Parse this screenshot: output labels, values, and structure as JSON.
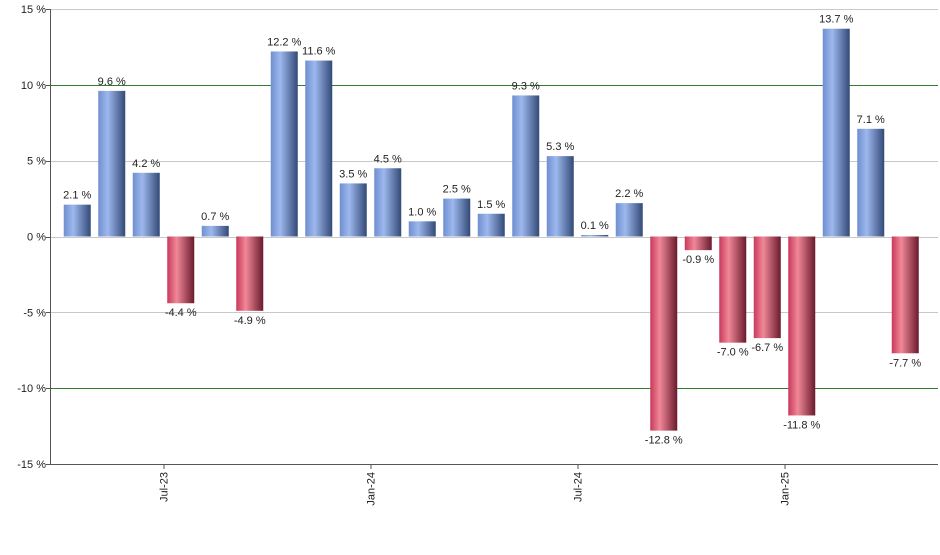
{
  "chart_data": {
    "type": "bar",
    "title": "",
    "xlabel": "",
    "ylabel": "",
    "ylim": [
      -15,
      15
    ],
    "y_ticks": [
      15,
      10,
      5,
      0,
      -5,
      -10,
      -15
    ],
    "y_tick_labels": [
      "15 %",
      "10 %",
      "5 %",
      "0 %",
      "-5 %",
      "-10 %",
      "-15 %"
    ],
    "major_gridlines": [
      10,
      -10
    ],
    "x_tick_labels": [
      {
        "label": "Jul-23",
        "after_index": 2
      },
      {
        "label": "Jan-24",
        "after_index": 8
      },
      {
        "label": "Jul-24",
        "after_index": 14
      },
      {
        "label": "Jan-25",
        "after_index": 20
      }
    ],
    "values": [
      2.1,
      9.6,
      4.2,
      -4.4,
      0.7,
      -4.9,
      12.2,
      11.6,
      3.5,
      4.5,
      1.0,
      2.5,
      1.5,
      9.3,
      5.3,
      0.1,
      2.2,
      -12.8,
      -0.9,
      -7.0,
      -6.7,
      -11.8,
      13.7,
      7.1,
      -7.7
    ],
    "value_labels": [
      "2.1 %",
      "9.6 %",
      "4.2 %",
      "-4.4 %",
      "0.7 %",
      "-4.9 %",
      "12.2 %",
      "11.6 %",
      "3.5 %",
      "4.5 %",
      "1.0 %",
      "2.5 %",
      "1.5 %",
      "9.3 %",
      "5.3 %",
      "0.1 %",
      "2.2 %",
      "-12.8 %",
      "-0.9 %",
      "-7.0 %",
      "-6.7 %",
      "-11.8 %",
      "13.7 %",
      "7.1 %",
      "-7.7 %"
    ],
    "grid": true,
    "legend": "none"
  },
  "colors": {
    "positive_light": "#9db8ee",
    "positive_mid": "#6f8fcf",
    "positive_dark": "#334a77",
    "negative_light": "#f08898",
    "negative_mid": "#c8395a",
    "negative_dark": "#6a1a2d",
    "gridline": "#c8c8c8",
    "major_gridline": "#2e7d32",
    "axis": "#555555"
  }
}
